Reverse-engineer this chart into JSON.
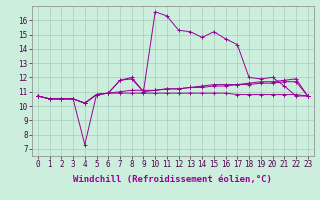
{
  "xlabel": "Windchill (Refroidissement éolien,°C)",
  "ylabel": "",
  "background_color": "#cceedd",
  "grid_color": "#aaccbb",
  "line_color": "#990099",
  "x_ticks": [
    0,
    1,
    2,
    3,
    4,
    5,
    6,
    7,
    8,
    9,
    10,
    11,
    12,
    13,
    14,
    15,
    16,
    17,
    18,
    19,
    20,
    21,
    22,
    23
  ],
  "y_ticks": [
    7,
    8,
    9,
    10,
    11,
    12,
    13,
    14,
    15,
    16
  ],
  "ylim": [
    6.5,
    17.0
  ],
  "xlim": [
    -0.5,
    23.5
  ],
  "series": [
    [
      10.7,
      10.5,
      10.5,
      10.5,
      7.3,
      10.8,
      10.9,
      11.8,
      12.0,
      11.0,
      16.6,
      16.3,
      15.3,
      15.2,
      14.8,
      15.2,
      14.7,
      14.3,
      12.0,
      11.9,
      12.0,
      11.4,
      10.7,
      10.7
    ],
    [
      10.7,
      10.5,
      10.5,
      10.5,
      10.2,
      10.8,
      10.9,
      11.8,
      11.9,
      11.0,
      11.1,
      11.2,
      11.2,
      11.3,
      11.4,
      11.5,
      11.5,
      11.5,
      11.6,
      11.7,
      11.7,
      11.8,
      11.9,
      10.7
    ],
    [
      10.7,
      10.5,
      10.5,
      10.5,
      10.2,
      10.8,
      10.9,
      11.0,
      11.1,
      11.1,
      11.1,
      11.2,
      11.2,
      11.3,
      11.3,
      11.4,
      11.4,
      11.5,
      11.5,
      11.6,
      11.6,
      11.7,
      11.7,
      10.7
    ],
    [
      10.7,
      10.5,
      10.5,
      10.5,
      10.2,
      10.8,
      10.9,
      10.9,
      10.9,
      10.9,
      10.9,
      10.9,
      10.9,
      10.9,
      10.9,
      10.9,
      10.9,
      10.8,
      10.8,
      10.8,
      10.8,
      10.8,
      10.8,
      10.7
    ]
  ],
  "xlabel_fontsize": 6.5,
  "tick_fontsize": 5.5
}
